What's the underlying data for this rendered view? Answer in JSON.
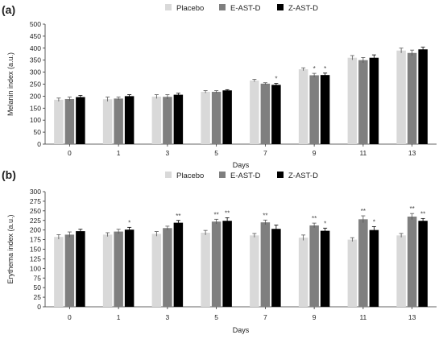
{
  "chart_data": [
    {
      "type": "bar",
      "panel_label": "(a)",
      "categories": [
        "0",
        "1",
        "3",
        "5",
        "7",
        "9",
        "11",
        "13"
      ],
      "xlabel": "Days",
      "ylabel": "Melanin index (a.u.)",
      "ylim": [
        0,
        500
      ],
      "yticks": [
        "0",
        "50",
        "100",
        "150",
        "200",
        "250",
        "300",
        "350",
        "400",
        "450",
        "500"
      ],
      "grid": false,
      "legend_position": "top",
      "series": [
        {
          "name": "Placebo",
          "color": "#d9d9d9",
          "values": [
            185,
            187,
            198,
            218,
            265,
            312,
            360,
            390
          ],
          "errors": [
            7,
            9,
            8,
            5,
            5,
            6,
            9,
            10
          ],
          "annotations": [
            "",
            "",
            "",
            "",
            "",
            "",
            "",
            ""
          ]
        },
        {
          "name": "E-AST-D",
          "color": "#7f7f7f",
          "values": [
            188,
            190,
            197,
            218,
            252,
            287,
            350,
            380
          ],
          "errors": [
            8,
            6,
            9,
            5,
            4,
            8,
            11,
            12
          ],
          "annotations": [
            "",
            "",
            "",
            "",
            "",
            "*",
            "",
            ""
          ]
        },
        {
          "name": "Z-AST-D",
          "color": "#000000",
          "values": [
            196,
            200,
            206,
            224,
            247,
            288,
            360,
            395
          ],
          "errors": [
            7,
            6,
            6,
            3,
            6,
            8,
            12,
            9
          ],
          "annotations": [
            "",
            "",
            "",
            "",
            "*",
            "*",
            "",
            ""
          ]
        }
      ]
    },
    {
      "type": "bar",
      "panel_label": "(b)",
      "categories": [
        "0",
        "1",
        "3",
        "5",
        "7",
        "9",
        "11",
        "13"
      ],
      "xlabel": "Days",
      "ylabel": "Erythema index (a.u.)",
      "ylim": [
        0,
        300
      ],
      "yticks": [
        "0",
        "25",
        "50",
        "75",
        "100",
        "125",
        "150",
        "175",
        "200",
        "225",
        "250",
        "275",
        "300"
      ],
      "grid": false,
      "legend_position": "top",
      "series": [
        {
          "name": "Placebo",
          "color": "#d9d9d9",
          "values": [
            182,
            188,
            190,
            193,
            186,
            180,
            175,
            186
          ],
          "errors": [
            6,
            5,
            6,
            6,
            5,
            7,
            5,
            5
          ],
          "annotations": [
            "",
            "",
            "",
            "",
            "",
            "",
            "",
            ""
          ]
        },
        {
          "name": "E-AST-D",
          "color": "#7f7f7f",
          "values": [
            188,
            196,
            205,
            222,
            220,
            212,
            228,
            235
          ],
          "errors": [
            7,
            6,
            5,
            6,
            6,
            6,
            9,
            8
          ],
          "annotations": [
            "",
            "",
            "",
            "**",
            "**",
            "**",
            "**",
            "**"
          ]
        },
        {
          "name": "Z-AST-D",
          "color": "#000000",
          "values": [
            197,
            201,
            219,
            224,
            203,
            198,
            200,
            224
          ],
          "errors": [
            5,
            6,
            6,
            8,
            10,
            7,
            9,
            6
          ],
          "annotations": [
            "",
            "*",
            "**",
            "**",
            "",
            "*",
            "*",
            "**"
          ]
        }
      ]
    }
  ]
}
